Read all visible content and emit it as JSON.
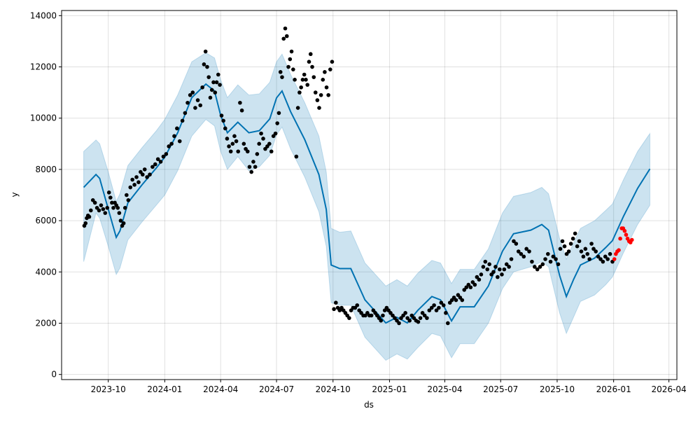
{
  "chart_data": {
    "type": "line",
    "title": "",
    "xlabel": "ds",
    "ylabel": "y",
    "ylim": [
      -200,
      14200
    ],
    "xlim": [
      "2023-07-17",
      "2026-04-14"
    ],
    "grid": true,
    "yticks": [
      0,
      2000,
      4000,
      6000,
      8000,
      10000,
      12000,
      14000
    ],
    "xticks": [
      "2023-10",
      "2024-01",
      "2024-04",
      "2024-07",
      "2024-10",
      "2025-01",
      "2025-04",
      "2025-07",
      "2025-10",
      "2026-01",
      "2026-04"
    ],
    "colors": {
      "forecast": "#0072B2",
      "band": "#0072B2",
      "actual": "#000000",
      "test": "#ff0000"
    },
    "forecast": [
      [
        "2023-08-22",
        7300,
        8700,
        4400
      ],
      [
        "2023-09-11",
        7800,
        9150,
        6300
      ],
      [
        "2023-09-17",
        7650,
        9000,
        6100
      ],
      [
        "2023-10-01",
        6450,
        7900,
        5000
      ],
      [
        "2023-10-14",
        5350,
        6750,
        3900
      ],
      [
        "2023-10-20",
        5600,
        7050,
        4150
      ],
      [
        "2023-11-02",
        6700,
        8150,
        5250
      ],
      [
        "2023-11-25",
        7400,
        8850,
        5950
      ],
      [
        "2023-12-18",
        8050,
        9500,
        6600
      ],
      [
        "2024-01-01",
        8480,
        9950,
        7000
      ],
      [
        "2024-01-22",
        9430,
        10900,
        7950
      ],
      [
        "2024-02-14",
        10800,
        12200,
        9300
      ],
      [
        "2024-03-08",
        11330,
        12550,
        9950
      ],
      [
        "2024-03-22",
        11060,
        12350,
        9700
      ],
      [
        "2024-04-01",
        10110,
        11500,
        8700
      ],
      [
        "2024-04-12",
        9430,
        10800,
        8000
      ],
      [
        "2024-04-29",
        9840,
        11300,
        8500
      ],
      [
        "2024-05-17",
        9430,
        10900,
        7950
      ],
      [
        "2024-06-03",
        9510,
        10950,
        8100
      ],
      [
        "2024-06-20",
        9970,
        11400,
        8550
      ],
      [
        "2024-07-01",
        10790,
        12200,
        9350
      ],
      [
        "2024-07-10",
        11060,
        12500,
        9650
      ],
      [
        "2024-07-24",
        10250,
        11700,
        8800
      ],
      [
        "2024-08-16",
        9160,
        10600,
        7700
      ],
      [
        "2024-09-08",
        7800,
        9300,
        6350
      ],
      [
        "2024-09-20",
        6440,
        7900,
        5000
      ],
      [
        "2024-09-28",
        4270,
        5700,
        2800
      ],
      [
        "2024-10-12",
        4130,
        5550,
        2700
      ],
      [
        "2024-10-30",
        4130,
        5600,
        2700
      ],
      [
        "2024-11-22",
        2910,
        4350,
        1450
      ],
      [
        "2024-12-26",
        2010,
        3450,
        550
      ],
      [
        "2025-01-13",
        2230,
        3700,
        800
      ],
      [
        "2025-01-30",
        2010,
        3450,
        600
      ],
      [
        "2025-02-16",
        2500,
        3950,
        1050
      ],
      [
        "2025-03-11",
        3040,
        4450,
        1600
      ],
      [
        "2025-03-25",
        2910,
        4350,
        1500
      ],
      [
        "2025-04-12",
        2090,
        3550,
        650
      ],
      [
        "2025-04-26",
        2640,
        4100,
        1200
      ],
      [
        "2025-05-19",
        2640,
        4100,
        1200
      ],
      [
        "2025-06-11",
        3450,
        4900,
        2000
      ],
      [
        "2025-07-04",
        4810,
        6300,
        3350
      ],
      [
        "2025-07-22",
        5490,
        6950,
        4000
      ],
      [
        "2025-08-19",
        5630,
        7100,
        4200
      ],
      [
        "2025-09-06",
        5850,
        7300,
        4400
      ],
      [
        "2025-09-17",
        5630,
        7050,
        4200
      ],
      [
        "2025-10-05",
        3860,
        5300,
        2400
      ],
      [
        "2025-10-16",
        3040,
        4500,
        1600
      ],
      [
        "2025-10-28",
        3720,
        5150,
        2250
      ],
      [
        "2025-11-08",
        4270,
        5700,
        2850
      ],
      [
        "2025-12-01",
        4540,
        6000,
        3100
      ],
      [
        "2025-12-19",
        4950,
        6400,
        3500
      ],
      [
        "2025-12-30",
        5220,
        6650,
        3800
      ],
      [
        "2026-01-17",
        6170,
        7600,
        4750
      ],
      [
        "2026-02-09",
        7260,
        8700,
        5850
      ],
      [
        "2026-03-01",
        8020,
        9400,
        6600
      ]
    ],
    "actual": [
      {
        "month": "2023-08",
        "start_day": 22,
        "values": [
          5800,
          5900,
          6100,
          6200,
          6150
        ]
      },
      {
        "month": "2023-09",
        "start_day": 1,
        "values": [
          6400,
          6800,
          6700,
          6500,
          6400,
          6600,
          6450,
          6300,
          6500
        ]
      },
      {
        "month": "2023-10",
        "start_day": 1,
        "values": [
          7100,
          6900,
          6700,
          6500,
          6700,
          6600,
          6500,
          6300,
          6000,
          5800,
          5900,
          6500,
          7000
        ]
      },
      {
        "month": "2023-11",
        "start_day": 1,
        "values": [
          6800,
          7300,
          7600,
          7400,
          7700,
          7500,
          7900,
          7800,
          8000
        ]
      },
      {
        "month": "2023-12",
        "start_day": 1,
        "values": [
          7700,
          7800,
          8100,
          8200,
          8400,
          8300,
          8500
        ]
      },
      {
        "month": "2024-01",
        "start_day": 1,
        "values": [
          8600,
          8900,
          9000,
          9300,
          9600,
          9100,
          9900
        ]
      },
      {
        "month": "2024-02",
        "start_day": 1,
        "values": [
          10200,
          10600,
          10900,
          11000,
          10400,
          10700,
          10500
        ]
      },
      {
        "month": "2024-03",
        "start_day": 1,
        "values": [
          11200,
          12100,
          12600,
          12000,
          11600,
          10800,
          11100,
          11400,
          11000,
          11400,
          11700,
          11300
        ]
      },
      {
        "month": "2024-04",
        "start_day": 1,
        "values": [
          10100,
          9900,
          9600,
          9200,
          8900,
          8700,
          9000,
          9300,
          9100,
          8700
        ]
      },
      {
        "month": "2024-05",
        "start_day": 1,
        "values": [
          10600,
          10300,
          9000,
          8800,
          8700,
          8100,
          7900,
          8300,
          8100,
          8600
        ]
      },
      {
        "month": "2024-06",
        "start_day": 1,
        "values": [
          9000,
          9400,
          9200,
          8800,
          8900,
          9000,
          8700,
          9300,
          9400
        ]
      },
      {
        "month": "2024-07",
        "start_day": 1,
        "values": [
          9800,
          10200,
          11800,
          11600,
          13100,
          13500,
          13200,
          12000,
          12300,
          12600,
          11900,
          11500
        ]
      },
      {
        "month": "2024-08",
        "start_day": 1,
        "values": [
          8500,
          10400,
          11000,
          11200,
          11500,
          11700,
          11500,
          11300,
          12200,
          12500,
          12000,
          11600
        ]
      },
      {
        "month": "2024-09",
        "start_day": 1,
        "values": [
          11000,
          10700,
          10400,
          10900,
          11500,
          11800,
          11200,
          10900,
          11900,
          12200
        ]
      },
      {
        "month": "2024-10",
        "start_day": 1,
        "values": [
          2550,
          2800,
          2600,
          2500,
          2600,
          2500,
          2400,
          2300,
          2200,
          2500
        ]
      },
      {
        "month": "2024-11",
        "start_day": 1,
        "values": [
          2600,
          2600,
          2700,
          2500,
          2400,
          2300,
          2300,
          2400,
          2300
        ]
      },
      {
        "month": "2024-12",
        "start_day": 1,
        "values": [
          2300,
          2500,
          2400,
          2300,
          2200,
          2100,
          2300,
          2500,
          2600,
          2500
        ]
      },
      {
        "month": "2025-01",
        "start_day": 1,
        "values": [
          2400,
          2300,
          2200,
          2100,
          2000,
          2200,
          2300,
          2400,
          2200
        ]
      },
      {
        "month": "2025-02",
        "start_day": 1,
        "values": [
          2100,
          2300,
          2200,
          2100,
          2050,
          2200,
          2400,
          2300
        ]
      },
      {
        "month": "2025-03",
        "start_day": 1,
        "values": [
          2200,
          2500,
          2600,
          2700,
          2500,
          2600,
          2800,
          2700
        ]
      },
      {
        "month": "2025-04",
        "start_day": 1,
        "values": [
          2400,
          2000,
          2800,
          2900,
          3000,
          2900,
          3100,
          3000,
          2900
        ]
      },
      {
        "month": "2025-05",
        "start_day": 1,
        "values": [
          3300,
          3400,
          3500,
          3400,
          3600,
          3500,
          3800,
          3700,
          3900
        ]
      },
      {
        "month": "2025-06",
        "start_day": 1,
        "values": [
          4200,
          4400,
          4100,
          4300,
          3900,
          4000,
          4200,
          3800,
          4100
        ]
      },
      {
        "month": "2025-07",
        "start_day": 1,
        "values": [
          3900,
          4100,
          4300,
          4200,
          4500,
          5200,
          5100,
          4800
        ]
      },
      {
        "month": "2025-08",
        "start_day": 1,
        "values": [
          4700,
          4600,
          4900,
          4800,
          4400,
          4200,
          4100
        ]
      },
      {
        "month": "2025-09",
        "start_day": 1,
        "values": [
          4200,
          4300,
          4500,
          4700,
          4400,
          4600,
          4500
        ]
      },
      {
        "month": "2025-10",
        "start_day": 1,
        "values": [
          4300,
          4900,
          5200,
          5000,
          4700,
          4800,
          5100,
          5300,
          5500
        ]
      },
      {
        "month": "2025-11",
        "start_day": 1,
        "values": [
          5000,
          5200,
          4800,
          4600,
          4900,
          4700,
          4500,
          5100,
          4900
        ]
      },
      {
        "month": "2025-12",
        "start_day": 1,
        "values": [
          4800,
          4600,
          4500,
          4400,
          4600,
          4500,
          4700,
          4400
        ]
      }
    ],
    "test": [
      {
        "month": "2026-01",
        "start_day": 1,
        "values": [
          4500,
          4700,
          4800,
          4850,
          5300,
          5700,
          5700,
          5600,
          5450,
          5300,
          5200,
          5150,
          5250
        ]
      }
    ]
  }
}
